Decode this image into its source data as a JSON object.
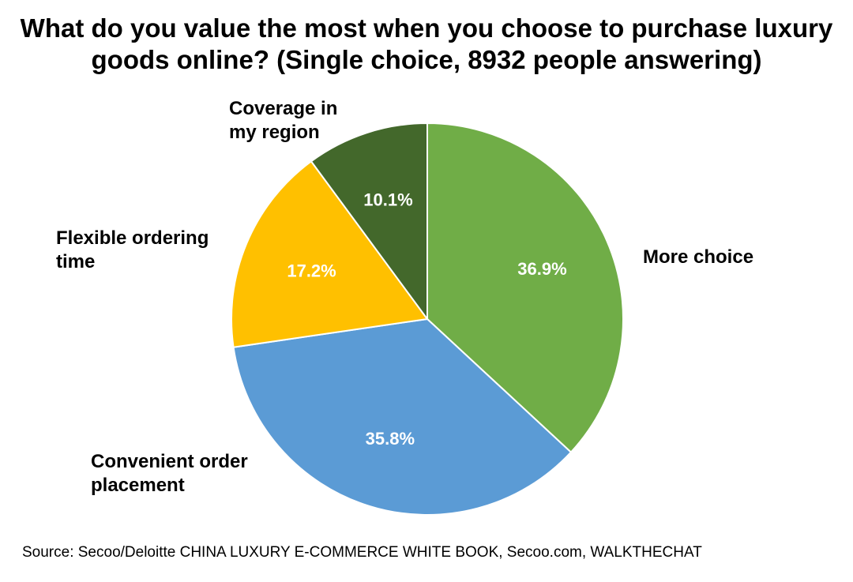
{
  "title_line1": "What do you value the most when you choose to purchase luxury",
  "title_line2": "goods online? (Single choice, 8932 people answering)",
  "source": "Source: Secoo/Deloitte CHINA LUXURY E-COMMERCE WHITE BOOK, Secoo.com, WALKTHECHAT",
  "chart_data": {
    "type": "pie",
    "title": "What do you value the most when you choose to purchase luxury goods online? (Single choice, 8932 people answering)",
    "start": "12 o'clock",
    "direction": "clockwise",
    "legend": "none (labels beside slices)",
    "slices": [
      {
        "label": "More choice",
        "label_lines": [
          "More choice"
        ],
        "value": 36.9,
        "display": "36.9%",
        "color": "#70AD47"
      },
      {
        "label": "Convenient order placement",
        "label_lines": [
          "Convenient order",
          "placement"
        ],
        "value": 35.8,
        "display": "35.8%",
        "color": "#5B9BD5"
      },
      {
        "label": "Flexible ordering time",
        "label_lines": [
          "Flexible ordering",
          "time"
        ],
        "value": 17.2,
        "display": "17.2%",
        "color": "#FFC000"
      },
      {
        "label": "Coverage in my region",
        "label_lines": [
          "Coverage in",
          "my region"
        ],
        "value": 10.1,
        "display": "10.1%",
        "color": "#43682B"
      }
    ]
  }
}
